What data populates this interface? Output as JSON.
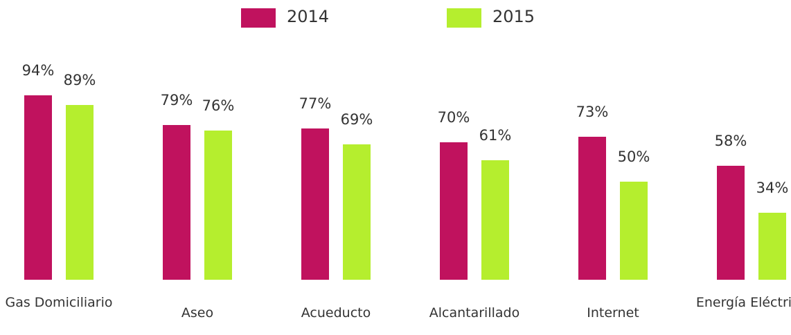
{
  "chart_data": {
    "type": "bar",
    "categories": [
      "Gas Domiciliario",
      "Aseo",
      "Acueducto",
      "Alcantarillado",
      "Internet",
      "Energía Eléctrica"
    ],
    "series": [
      {
        "name": "2014",
        "color": "#c0125e",
        "values": [
          94,
          79,
          77,
          70,
          73,
          58
        ],
        "value_labels": [
          "94%",
          "79%",
          "77%",
          "70%",
          "73%",
          "58%"
        ]
      },
      {
        "name": "2015",
        "color": "#b5ee2e",
        "values": [
          89,
          76,
          69,
          61,
          50,
          34
        ],
        "value_labels": [
          "89%",
          "76%",
          "69%",
          "61%",
          "50%",
          "34%"
        ]
      }
    ]
  }
}
